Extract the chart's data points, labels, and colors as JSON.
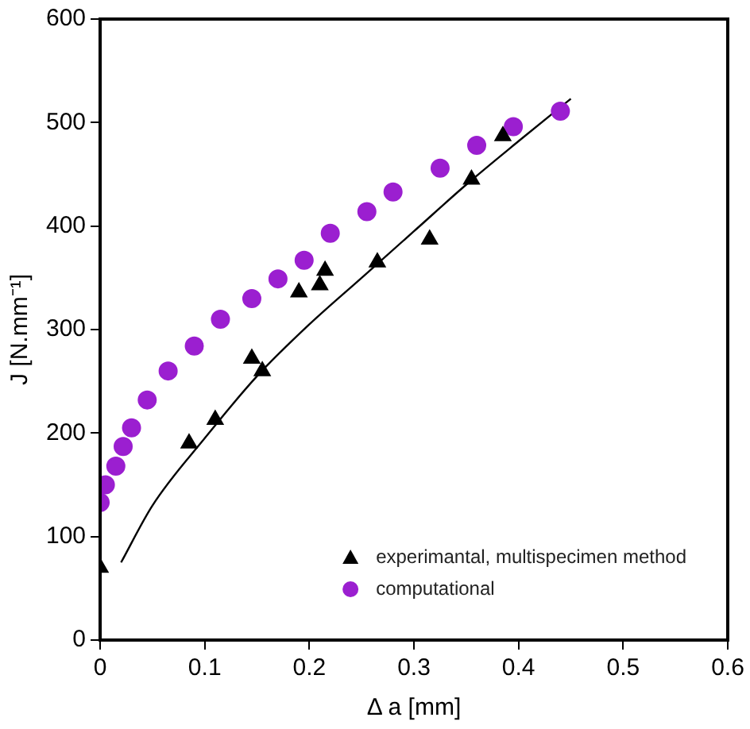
{
  "chart_data": {
    "type": "scatter",
    "xlabel": "Δ a [mm]",
    "ylabel": "J [N.mm⁻¹]",
    "xlim": [
      0,
      0.6
    ],
    "xticks": [
      0,
      0.1,
      0.2,
      0.3,
      0.4,
      0.5,
      0.6
    ],
    "ylim": [
      0,
      600
    ],
    "yticks": [
      0,
      100,
      200,
      300,
      400,
      500,
      600
    ],
    "grid": false,
    "legend": "bottom right",
    "series": [
      {
        "name": "experimantal, multispecimen method",
        "color": "#000000",
        "marker": "triangle",
        "x": [
          0,
          0.085,
          0.11,
          0.145,
          0.155,
          0.19,
          0.21,
          0.215,
          0.265,
          0.315,
          0.355,
          0.385
        ],
        "values": [
          70,
          190,
          213,
          272,
          260,
          336,
          343,
          357,
          365,
          387,
          445,
          487
        ]
      },
      {
        "name": "computational",
        "color": "#9b1fd0",
        "marker": "circle",
        "x": [
          0,
          0.005,
          0.015,
          0.022,
          0.03,
          0.045,
          0.065,
          0.09,
          0.115,
          0.145,
          0.17,
          0.195,
          0.22,
          0.255,
          0.28,
          0.325,
          0.36,
          0.395,
          0.44
        ],
        "values": [
          133,
          150,
          168,
          187,
          205,
          232,
          260,
          284,
          310,
          330,
          349,
          367,
          393,
          414,
          433,
          456,
          478,
          496,
          511
        ]
      },
      {
        "type": "line",
        "color": "#000000",
        "marker": "none",
        "x": [
          0.02,
          0.05,
          0.1,
          0.15,
          0.2,
          0.25,
          0.3,
          0.35,
          0.4,
          0.45
        ],
        "values": [
          75,
          130,
          195,
          255,
          305,
          350,
          395,
          440,
          482,
          523
        ]
      }
    ]
  }
}
